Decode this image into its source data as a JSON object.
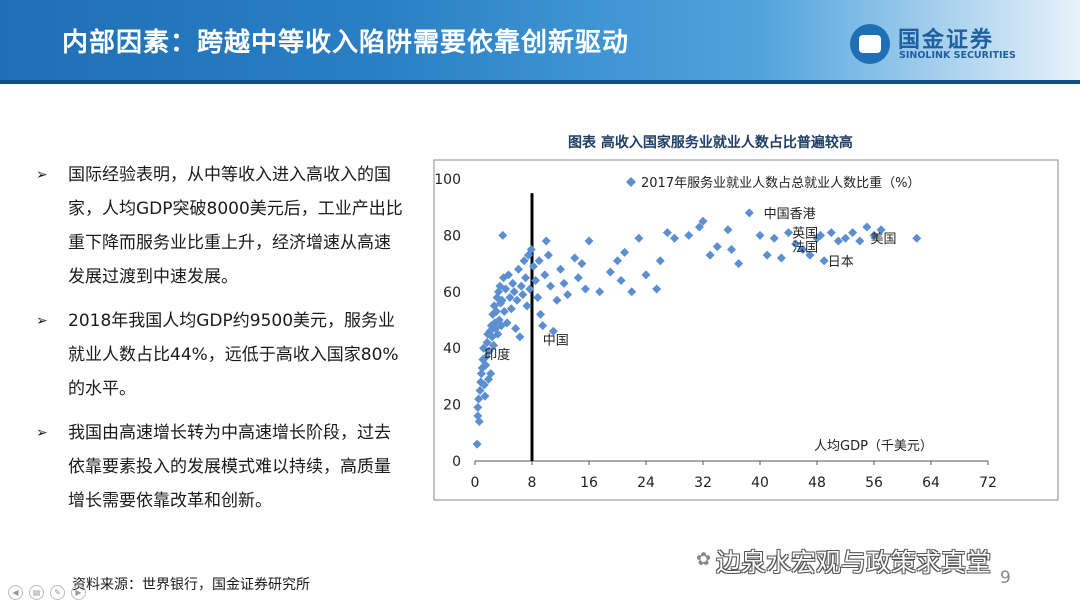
{
  "header": {
    "title": "内部因素：跨越中等收入陷阱需要依靠创新驱动",
    "logo_cn": "国金证券",
    "logo_en": "SINOLINK SECURITIES"
  },
  "bullets": [
    {
      "marker": "➢",
      "text": "国际经验表明，从中等收入进入高收入的国家，人均GDP突破8000美元后，工业产出比重下降而服务业比重上升，经济增速从高速发展过渡到中速发展。"
    },
    {
      "marker": "➢",
      "text": "2018年我国人均GDP约9500美元，服务业就业人数占比44%，远低于高收入国家80%的水平。"
    },
    {
      "marker": "➢",
      "text": "我国由高速增长转为中高速增长阶段，过去依靠要素投入的发展模式难以持续，高质量增长需要依靠改革和创新。"
    }
  ],
  "source": "资料来源：世界银行，国金证券研究所",
  "page_number": "9",
  "watermark": "边泉水宏观与政策求真堂",
  "colors": {
    "marker": "#5b8fd1",
    "header": "#1f6fb5",
    "reference_line": "#000000"
  },
  "chart_data": {
    "type": "scatter",
    "title": "图表  高收入国家服务业就业人数占比普遍较高",
    "xlabel": "人均GDP（千美元）",
    "ylabel": "",
    "xlim": [
      0,
      72
    ],
    "ylim": [
      0,
      100
    ],
    "xticks": [
      0,
      8,
      16,
      24,
      32,
      40,
      48,
      56,
      64,
      72
    ],
    "yticks": [
      0,
      20,
      40,
      60,
      80,
      100
    ],
    "legend": "top-right",
    "reference_line_x": 8,
    "series": [
      {
        "name": "2017年服务业就业人数占总就业人数比重（%）",
        "points": [
          [
            0.3,
            6
          ],
          [
            0.4,
            16
          ],
          [
            0.4,
            19
          ],
          [
            0.5,
            22
          ],
          [
            0.6,
            14
          ],
          [
            0.7,
            25
          ],
          [
            0.8,
            28
          ],
          [
            0.9,
            31
          ],
          [
            1.0,
            33
          ],
          [
            1.1,
            36
          ],
          [
            1.2,
            40
          ],
          [
            1.3,
            27
          ],
          [
            1.4,
            23
          ],
          [
            1.5,
            34
          ],
          [
            1.6,
            37
          ],
          [
            1.7,
            42
          ],
          [
            1.8,
            45
          ],
          [
            1.9,
            29
          ],
          [
            2.0,
            39
          ],
          [
            2.1,
            46
          ],
          [
            2.2,
            31
          ],
          [
            2.3,
            48
          ],
          [
            2.4,
            44
          ],
          [
            2.5,
            52
          ],
          [
            2.6,
            41
          ],
          [
            2.7,
            55
          ],
          [
            2.8,
            49
          ],
          [
            2.9,
            47
          ],
          [
            3.0,
            53
          ],
          [
            3.1,
            58
          ],
          [
            3.2,
            45
          ],
          [
            3.3,
            60
          ],
          [
            3.4,
            50
          ],
          [
            3.5,
            62
          ],
          [
            3.6,
            56
          ],
          [
            3.7,
            48
          ],
          [
            3.8,
            57
          ],
          [
            3.9,
            80
          ],
          [
            4.0,
            65
          ],
          [
            4.1,
            53
          ],
          [
            4.3,
            61
          ],
          [
            4.5,
            49
          ],
          [
            4.7,
            66
          ],
          [
            4.9,
            58
          ],
          [
            5.1,
            54
          ],
          [
            5.3,
            63
          ],
          [
            5.5,
            60
          ],
          [
            5.7,
            47
          ],
          [
            5.9,
            57
          ],
          [
            6.1,
            68
          ],
          [
            6.3,
            44
          ],
          [
            6.5,
            62
          ],
          [
            6.7,
            59
          ],
          [
            6.9,
            71
          ],
          [
            7.1,
            65
          ],
          [
            7.3,
            55
          ],
          [
            7.5,
            73
          ],
          [
            7.7,
            61
          ],
          [
            7.9,
            75
          ],
          [
            8.2,
            69
          ],
          [
            8.5,
            64
          ],
          [
            8.8,
            58
          ],
          [
            9.0,
            71
          ],
          [
            9.2,
            52
          ],
          [
            9.5,
            48
          ],
          [
            9.8,
            66
          ],
          [
            10.0,
            78
          ],
          [
            10.3,
            73
          ],
          [
            10.6,
            62
          ],
          [
            11.0,
            46
          ],
          [
            11.5,
            57
          ],
          [
            12.0,
            68
          ],
          [
            12.5,
            63
          ],
          [
            13.0,
            59
          ],
          [
            14.0,
            72
          ],
          [
            14.5,
            65
          ],
          [
            15.0,
            70
          ],
          [
            15.5,
            61
          ],
          [
            16.0,
            78
          ],
          [
            17.5,
            60
          ],
          [
            19.0,
            67
          ],
          [
            20.0,
            71
          ],
          [
            20.5,
            64
          ],
          [
            21.0,
            74
          ],
          [
            22.0,
            60
          ],
          [
            23.0,
            79
          ],
          [
            24.0,
            66
          ],
          [
            25.5,
            61
          ],
          [
            26.0,
            71
          ],
          [
            27.0,
            81
          ],
          [
            28.0,
            79
          ],
          [
            30.0,
            80
          ],
          [
            31.5,
            83
          ],
          [
            32.0,
            85
          ],
          [
            33.0,
            73
          ],
          [
            34.0,
            76
          ],
          [
            35.5,
            82
          ],
          [
            36.0,
            75
          ],
          [
            37.0,
            70
          ],
          [
            38.5,
            88
          ],
          [
            40.0,
            80
          ],
          [
            41.0,
            73
          ],
          [
            42.0,
            79
          ],
          [
            43.0,
            72
          ],
          [
            44.0,
            81
          ],
          [
            45.0,
            77
          ],
          [
            46.0,
            75
          ],
          [
            47.0,
            73
          ],
          [
            48.0,
            79
          ],
          [
            48.5,
            80
          ],
          [
            49.0,
            71
          ],
          [
            50.0,
            81
          ],
          [
            51.0,
            78
          ],
          [
            52.0,
            79
          ],
          [
            53.0,
            81
          ],
          [
            54.0,
            78
          ],
          [
            55.0,
            83
          ],
          [
            56.0,
            80
          ],
          [
            57.0,
            82
          ],
          [
            62.0,
            79
          ]
        ]
      }
    ],
    "annotations": [
      {
        "text": "中国香港",
        "x": 40.5,
        "y": 88
      },
      {
        "text": "英国",
        "x": 44.5,
        "y": 81
      },
      {
        "text": "法国",
        "x": 44.5,
        "y": 76
      },
      {
        "text": "美国",
        "x": 55.5,
        "y": 79
      },
      {
        "text": "日本",
        "x": 49.5,
        "y": 71
      },
      {
        "text": "中国",
        "x": 9.5,
        "y": 43
      },
      {
        "text": "印度",
        "x": 1.3,
        "y": 38
      }
    ]
  }
}
